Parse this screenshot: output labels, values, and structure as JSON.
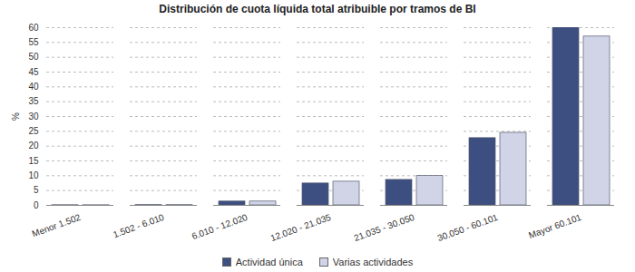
{
  "chart_data": {
    "type": "bar",
    "title": "Distribución de cuota líquida total atribuible por tramos de BI",
    "y_label": "%",
    "categories": [
      "Menor 1.502",
      "1.502 - 6.010",
      "6.010 - 12.020",
      "12.020 - 21.035",
      "21.035 - 30.050",
      "30.050 - 60.101",
      "Mayor 60.101"
    ],
    "series": [
      {
        "name": "Actividad única",
        "color": "#3d4e80",
        "values": [
          0.05,
          0.1,
          1.3,
          7.4,
          8.6,
          22.7,
          60
        ]
      },
      {
        "name": "Varias actividades",
        "color": "#d0d4e6",
        "values": [
          0.05,
          0.1,
          1.3,
          8.0,
          9.9,
          24.5,
          57
        ]
      }
    ],
    "ylim": [
      0,
      60
    ],
    "yticks": [
      0,
      5,
      10,
      15,
      20,
      25,
      30,
      35,
      40,
      45,
      50,
      55,
      60
    ],
    "grid": true,
    "legend": "bottom"
  }
}
